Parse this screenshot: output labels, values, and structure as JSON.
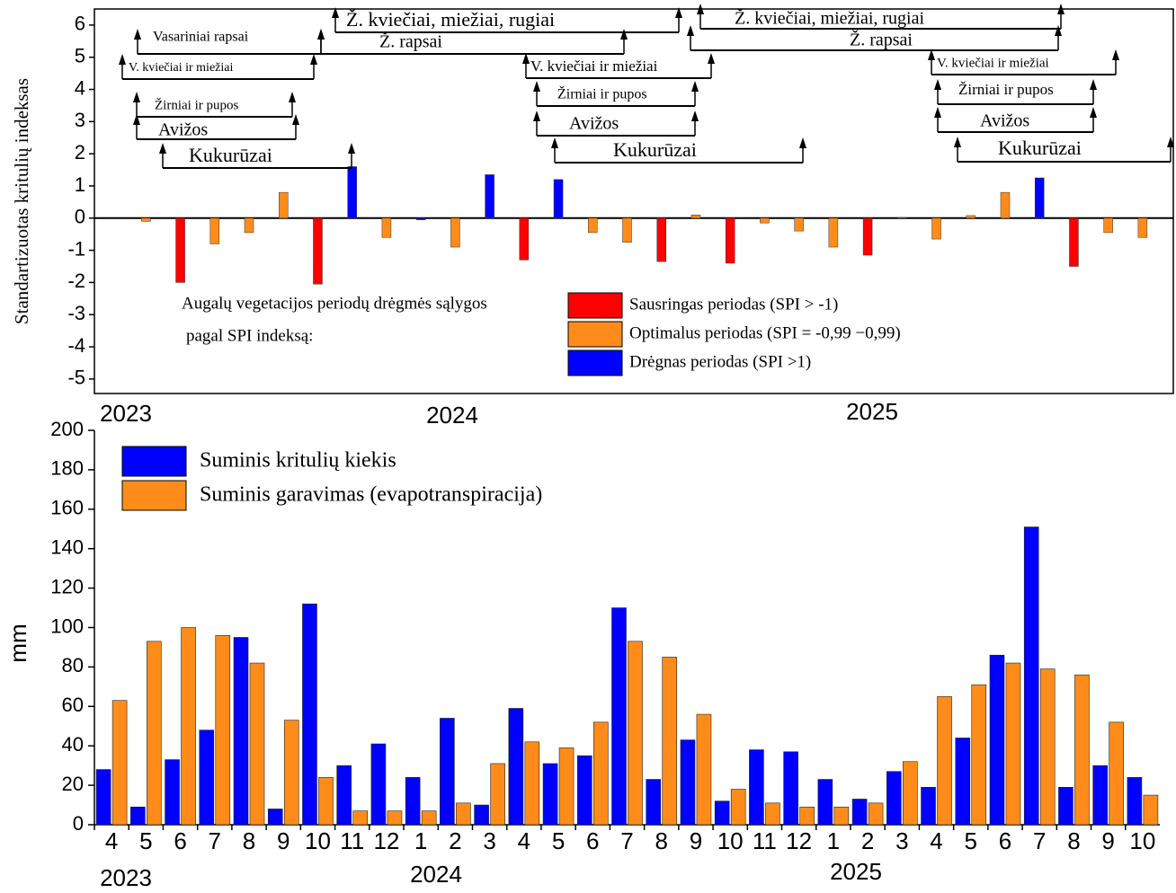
{
  "chart_data": [
    {
      "type": "bar",
      "ylabel": "Standartizuotas kritulių indeksas",
      "ylim": [
        -5.45,
        6.5
      ],
      "yticks": [
        -5,
        -4,
        -3,
        -2,
        -1,
        0,
        1,
        2,
        3,
        4,
        5,
        6
      ],
      "year_labels": [
        "2023",
        "2024",
        "2025"
      ],
      "legend_title": [
        "Augalų vegetacijos periodų drėgmės sąlygos",
        "pagal SPI indeksą:"
      ],
      "series": [
        {
          "name": "Sausringas periodas (SPI > -1)",
          "color": "#ff0000",
          "values": [
            null,
            null,
            -2.0,
            null,
            null,
            null,
            -2.05,
            null,
            null,
            null,
            null,
            null,
            -1.3,
            null,
            null,
            null,
            -1.35,
            null,
            -1.4,
            null,
            null,
            null,
            -1.15,
            null,
            null,
            null,
            null,
            null,
            -1.5,
            null,
            null
          ]
        },
        {
          "name": "Optimalus periodas (SPI = -0,99 −0,99)",
          "color": "#ff8c1a",
          "values": [
            null,
            -0.1,
            null,
            -0.8,
            -0.45,
            0.8,
            null,
            null,
            -0.6,
            null,
            -0.9,
            null,
            null,
            null,
            -0.45,
            -0.75,
            null,
            0.1,
            null,
            -0.15,
            -0.4,
            -0.9,
            null,
            0.02,
            -0.65,
            0.08,
            0.8,
            null,
            null,
            -0.45,
            -0.6
          ]
        },
        {
          "name": "Drėgnas periodas (SPI >1)",
          "color": "#0000ff",
          "values": [
            null,
            null,
            null,
            null,
            null,
            null,
            null,
            1.6,
            null,
            -0.05,
            null,
            1.35,
            null,
            1.2,
            null,
            null,
            null,
            null,
            null,
            null,
            null,
            null,
            null,
            null,
            null,
            null,
            null,
            1.25,
            null,
            null,
            null
          ]
        }
      ],
      "annotations": [
        "Vasariniai rapsai",
        "V. kviečiai ir miežiai",
        "Žirniai ir pupos",
        "Avižos",
        "Kukurūzai",
        "Ž. kviečiai, miežiai, rugiai",
        "Ž. rapsai",
        "V. kviečiai ir miežiai",
        "Žirniai ir pupos",
        "Avižos",
        "Kukurūzai",
        "Ž. kviečiai, miežiai, rugiai",
        "Ž. rapsai",
        "V. kviečiai ir miežiai",
        "Žirniai ir pupos",
        "Avižos",
        "Kukurūzai"
      ]
    },
    {
      "type": "grouped_bar",
      "ylabel": "mm",
      "ylim": [
        0,
        200
      ],
      "yticks": [
        0,
        20,
        40,
        60,
        80,
        100,
        120,
        140,
        160,
        180,
        200
      ],
      "categories": [
        "4",
        "5",
        "6",
        "7",
        "8",
        "9",
        "10",
        "11",
        "12",
        "1",
        "2",
        "3",
        "4",
        "5",
        "6",
        "7",
        "8",
        "9",
        "10",
        "11",
        "12",
        "1",
        "2",
        "3",
        "4",
        "5",
        "6",
        "7",
        "8",
        "9",
        "10"
      ],
      "year_labels": [
        "2023",
        "2024",
        "2025"
      ],
      "series": [
        {
          "name": "Suminis kritulių kiekis",
          "color": "#0000ff",
          "values": [
            28,
            9,
            33,
            48,
            95,
            8,
            112,
            30,
            41,
            24,
            54,
            10,
            59,
            31,
            35,
            110,
            23,
            43,
            12,
            38,
            37,
            23,
            13,
            27,
            19,
            44,
            86,
            151,
            19,
            30,
            24
          ]
        },
        {
          "name": "Suminis garavimas (evapotranspiracija)",
          "color": "#ff8c1a",
          "values": [
            63,
            93,
            100,
            96,
            82,
            53,
            24,
            7,
            7,
            7,
            11,
            31,
            42,
            39,
            52,
            93,
            85,
            56,
            18,
            11,
            9,
            9,
            11,
            32,
            65,
            71,
            82,
            79,
            76,
            52,
            15
          ]
        }
      ]
    }
  ]
}
